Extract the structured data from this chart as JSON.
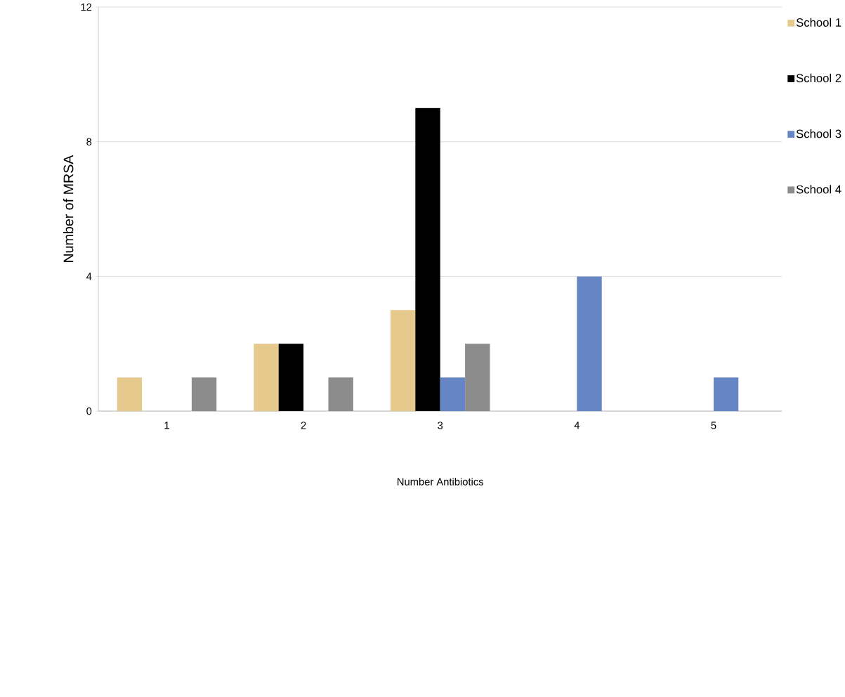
{
  "chart_data": {
    "type": "bar",
    "xlabel": "Number Antibiotics",
    "ylabel": "Number of MRSA",
    "categories": [
      "1",
      "2",
      "3",
      "4",
      "5"
    ],
    "series": [
      {
        "name": "School 1",
        "color": "#e6c98c",
        "values": [
          1,
          2,
          3,
          0,
          0
        ]
      },
      {
        "name": "School 2",
        "color": "#000000",
        "values": [
          0,
          2,
          9,
          0,
          0
        ]
      },
      {
        "name": "School 3",
        "color": "#6685c4",
        "values": [
          0,
          0,
          1,
          4,
          1
        ]
      },
      {
        "name": "School 4",
        "color": "#8c8c8c",
        "values": [
          1,
          1,
          2,
          0,
          0
        ]
      }
    ],
    "ylim": [
      0,
      12
    ],
    "yticks": [
      0,
      4,
      8,
      12
    ],
    "grid": "y",
    "legend": "right"
  }
}
